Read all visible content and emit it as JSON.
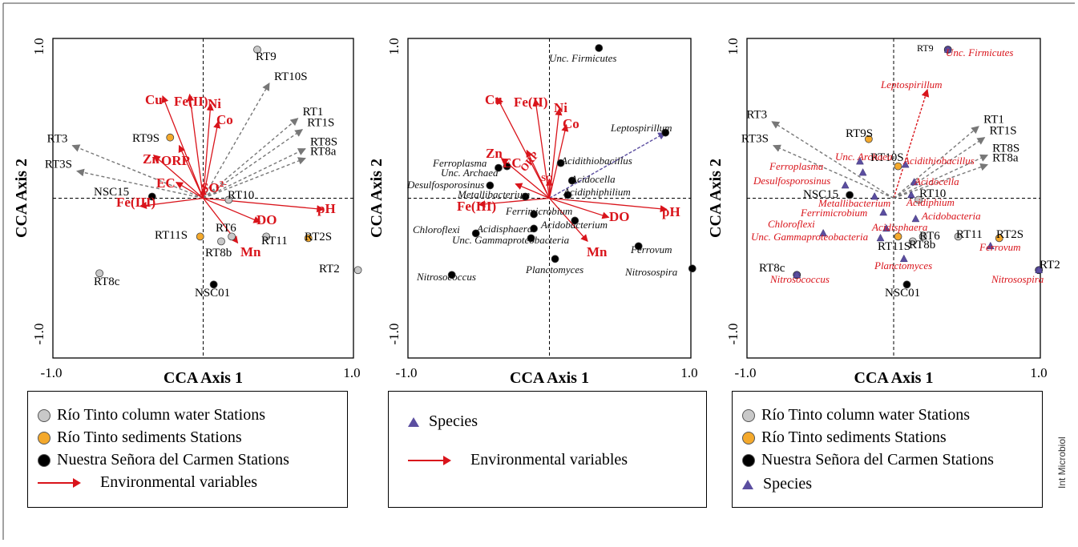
{
  "credit": "Int Microbiol",
  "colors": {
    "water": "#c8c8c8",
    "sediment": "#f4a92c",
    "nsc": "#000000",
    "species": "#5b4ea0",
    "env": "#d9141b",
    "arrow_gray": "#777777"
  },
  "chart_data": [
    {
      "type": "scatter",
      "panel": "sites-and-environment",
      "xlabel": "CCA Axis 1",
      "ylabel": "CCA Axis 2",
      "xlim": [
        -1.0,
        1.0
      ],
      "ylim": [
        -1.0,
        1.0
      ],
      "tick_labels": {
        "xmin": "-1.0",
        "xmax": "1.0",
        "ymin": "-1.0",
        "ymax": "1.0"
      },
      "env_vectors": [
        {
          "name": "Cu",
          "x": -0.27,
          "y": 0.64
        },
        {
          "name": "Fe(II)",
          "x": -0.09,
          "y": 0.65
        },
        {
          "name": "Ni",
          "x": 0.05,
          "y": 0.59
        },
        {
          "name": "Co",
          "x": 0.1,
          "y": 0.48
        },
        {
          "name": "Zn",
          "x": -0.33,
          "y": 0.27
        },
        {
          "name": "ORP",
          "x": -0.16,
          "y": 0.33
        },
        {
          "name": "EC",
          "x": -0.18,
          "y": 0.1
        },
        {
          "name": "SO",
          "superscript": "2-",
          "x": 0.0,
          "y": 0.06
        },
        {
          "name": "Fe(III)",
          "x": -0.42,
          "y": -0.05
        },
        {
          "name": "DO",
          "x": 0.38,
          "y": -0.15
        },
        {
          "name": "pH",
          "x": 0.8,
          "y": -0.07
        },
        {
          "name": "Mn",
          "x": 0.23,
          "y": -0.28
        }
      ],
      "species_vectors": [
        {
          "name": "RT10S",
          "x": 0.44,
          "y": 0.72
        },
        {
          "name": "RT1",
          "x": 0.63,
          "y": 0.5
        },
        {
          "name": "RT1S",
          "x": 0.66,
          "y": 0.43
        },
        {
          "name": "RT8S",
          "x": 0.68,
          "y": 0.31
        },
        {
          "name": "RT8a",
          "x": 0.68,
          "y": 0.25
        },
        {
          "name": "RT3",
          "x": -0.87,
          "y": 0.33
        },
        {
          "name": "RT3S",
          "x": -0.84,
          "y": 0.17
        }
      ],
      "points": [
        {
          "label": "RT9",
          "x": 0.36,
          "y": 0.93,
          "group": "water"
        },
        {
          "label": "RT9S",
          "x": -0.22,
          "y": 0.38,
          "group": "sediment"
        },
        {
          "label": "NSC15",
          "x": -0.34,
          "y": 0.01,
          "group": "nsc"
        },
        {
          "label": "RT10",
          "x": 0.17,
          "y": -0.01,
          "group": "water"
        },
        {
          "label": "RT11S",
          "x": -0.02,
          "y": -0.24,
          "group": "sediment"
        },
        {
          "label": "RT6",
          "x": 0.19,
          "y": -0.24,
          "group": "water"
        },
        {
          "label": "RT8b",
          "x": 0.12,
          "y": -0.27,
          "group": "water"
        },
        {
          "label": "RT11",
          "x": 0.42,
          "y": -0.24,
          "group": "water"
        },
        {
          "label": "RT2S",
          "x": 0.7,
          "y": -0.25,
          "group": "sediment"
        },
        {
          "label": "RT2",
          "x": 1.03,
          "y": -0.45,
          "group": "water"
        },
        {
          "label": "RT8c",
          "x": -0.69,
          "y": -0.47,
          "group": "water"
        },
        {
          "label": "NSC01",
          "x": 0.07,
          "y": -0.54,
          "group": "nsc"
        }
      ]
    },
    {
      "type": "scatter",
      "panel": "species-and-environment",
      "xlabel": "CCA Axis 1",
      "ylabel": "CCA Axis 2",
      "xlim": [
        -1.0,
        1.0
      ],
      "ylim": [
        -1.0,
        1.0
      ],
      "tick_labels": {
        "xmin": "-1.0",
        "xmax": "1.0",
        "ymin": "-1.0",
        "ymax": "1.0"
      },
      "env_vectors": [
        {
          "name": "Cu",
          "x": -0.37,
          "y": 0.63
        },
        {
          "name": "Fe(II)",
          "x": -0.1,
          "y": 0.62
        },
        {
          "name": "Ni",
          "x": 0.07,
          "y": 0.56
        },
        {
          "name": "Co",
          "x": 0.12,
          "y": 0.46
        },
        {
          "name": "Zn",
          "x": -0.34,
          "y": 0.25
        },
        {
          "name": "ORP",
          "x": -0.16,
          "y": 0.3
        },
        {
          "name": "EC",
          "x": -0.24,
          "y": 0.09
        },
        {
          "name": "SO",
          "x": 0.0,
          "y": 0.12
        },
        {
          "name": "Fe(III)",
          "x": -0.5,
          "y": -0.04
        },
        {
          "name": "DO",
          "x": 0.42,
          "y": -0.12
        },
        {
          "name": "pH",
          "x": 0.83,
          "y": -0.07
        },
        {
          "name": "Mn",
          "x": 0.27,
          "y": -0.27
        }
      ],
      "species_vectors": [
        {
          "name": "Leptospirillum",
          "x": 0.82,
          "y": 0.41
        }
      ],
      "points": [
        {
          "label": "Unc. Firmicutes",
          "x": 0.35,
          "y": 0.94
        },
        {
          "label": "Leptospirillum",
          "x": 0.82,
          "y": 0.41
        },
        {
          "label": "Acidithiobacillus",
          "x": 0.08,
          "y": 0.22
        },
        {
          "label": "Acidocella",
          "x": 0.16,
          "y": 0.11
        },
        {
          "label": "Acidiphiphilium",
          "x": 0.13,
          "y": 0.02
        },
        {
          "label": "Ferroplasma",
          "x": -0.3,
          "y": 0.2
        },
        {
          "label": "Unc. Archaea",
          "x": -0.36,
          "y": 0.19
        },
        {
          "label": "Desulfosporosinus",
          "x": -0.42,
          "y": 0.08
        },
        {
          "label": "Metallibacterium",
          "x": -0.17,
          "y": 0.01
        },
        {
          "label": "Ferrimicrobium",
          "x": -0.11,
          "y": -0.1
        },
        {
          "label": "Acidobacterium",
          "x": 0.18,
          "y": -0.14
        },
        {
          "label": "Chloroflexi",
          "x": -0.52,
          "y": -0.22
        },
        {
          "label": "Acidisphaera",
          "x": -0.11,
          "y": -0.19
        },
        {
          "label": "Unc. Gammaproteobacteria",
          "x": -0.13,
          "y": -0.25
        },
        {
          "label": "Planctomyces",
          "x": 0.04,
          "y": -0.38
        },
        {
          "label": "Ferrovum",
          "x": 0.63,
          "y": -0.3
        },
        {
          "label": "Nitrosococcus",
          "x": -0.69,
          "y": -0.48
        },
        {
          "label": "Nitrosospira",
          "x": 1.01,
          "y": -0.44
        }
      ]
    },
    {
      "type": "scatter",
      "panel": "sites-and-species",
      "xlabel": "CCA Axis 1",
      "ylabel": "CCA Axis 2",
      "xlim": [
        -1.0,
        1.0
      ],
      "ylim": [
        -1.0,
        1.0
      ],
      "tick_labels": {
        "xmin": "-1.0",
        "xmax": "1.0",
        "ymin": "-1.0",
        "ymax": "1.0"
      },
      "species_vectors": [
        {
          "name": "Leptospirillum",
          "x": 0.23,
          "y": 0.68,
          "dashed_red": true
        },
        {
          "name": "RT1",
          "x": 0.58,
          "y": 0.45
        },
        {
          "name": "RT1S",
          "x": 0.62,
          "y": 0.38
        },
        {
          "name": "RT8S",
          "x": 0.64,
          "y": 0.27
        },
        {
          "name": "RT8a",
          "x": 0.64,
          "y": 0.21
        },
        {
          "name": "RT3",
          "x": -0.83,
          "y": 0.48
        },
        {
          "name": "RT3S",
          "x": -0.82,
          "y": 0.33
        }
      ],
      "points": [
        {
          "label": "RT9",
          "x": 0.37,
          "y": 0.93,
          "group": "species-site"
        },
        {
          "label": "Unc. Firmicutes",
          "x": 0.37,
          "y": 0.93,
          "group": "species"
        },
        {
          "label": "RT9S",
          "x": -0.17,
          "y": 0.37,
          "group": "sediment"
        },
        {
          "label": "RT10S",
          "x": 0.03,
          "y": 0.2,
          "group": "sediment"
        },
        {
          "label": "NSC15",
          "x": -0.3,
          "y": 0.02,
          "group": "nsc"
        },
        {
          "label": "RT10",
          "x": 0.17,
          "y": -0.01,
          "group": "water"
        },
        {
          "label": "Unc. Archaea",
          "x": -0.23,
          "y": 0.23,
          "group": "species"
        },
        {
          "label": "Ferroplasma",
          "x": -0.21,
          "y": 0.16,
          "group": "species"
        },
        {
          "label": "Desulfosporosinus",
          "x": -0.33,
          "y": 0.08,
          "group": "species"
        },
        {
          "label": "Acidithiobacillus",
          "x": 0.08,
          "y": 0.21,
          "group": "species"
        },
        {
          "label": "Acidocella",
          "x": 0.14,
          "y": 0.1,
          "group": "species"
        },
        {
          "label": "Acidiphium",
          "x": 0.12,
          "y": 0.02,
          "group": "species"
        },
        {
          "label": "Metallibacterium",
          "x": -0.13,
          "y": 0.01,
          "group": "species"
        },
        {
          "label": "Ferrimicrobium",
          "x": -0.07,
          "y": -0.09,
          "group": "species"
        },
        {
          "label": "Acidobacteria",
          "x": 0.15,
          "y": -0.13,
          "group": "species"
        },
        {
          "label": "Chloroflexi",
          "x": -0.48,
          "y": -0.22,
          "group": "species"
        },
        {
          "label": "Acidisphaera",
          "x": -0.05,
          "y": -0.19,
          "group": "species"
        },
        {
          "label": "Unc. Gammaproteobacteria",
          "x": -0.09,
          "y": -0.25,
          "group": "species"
        },
        {
          "label": "RT11S",
          "x": 0.03,
          "y": -0.24,
          "group": "sediment"
        },
        {
          "label": "RT6",
          "x": 0.2,
          "y": -0.24,
          "group": "water"
        },
        {
          "label": "RT8b",
          "x": 0.13,
          "y": -0.27,
          "group": "water"
        },
        {
          "label": "RT11",
          "x": 0.44,
          "y": -0.24,
          "group": "water"
        },
        {
          "label": "RT2S",
          "x": 0.72,
          "y": -0.25,
          "group": "sediment"
        },
        {
          "label": "Ferrovum",
          "x": 0.66,
          "y": -0.3,
          "group": "species"
        },
        {
          "label": "Planctomyces",
          "x": 0.07,
          "y": -0.38,
          "group": "species"
        },
        {
          "label": "RT8c",
          "x": -0.66,
          "y": -0.48,
          "group": "species-site"
        },
        {
          "label": "Nitrosococcus",
          "x": -0.66,
          "y": -0.48,
          "group": "species"
        },
        {
          "label": "NSC01",
          "x": 0.09,
          "y": -0.54,
          "group": "nsc"
        },
        {
          "label": "RT2",
          "x": 0.99,
          "y": -0.45,
          "group": "species-site"
        },
        {
          "label": "Nitrosospira",
          "x": 0.99,
          "y": -0.45,
          "group": "species"
        }
      ]
    }
  ],
  "legends": {
    "left": [
      {
        "kind": "dot",
        "color": "#c8c8c8",
        "text": "Río Tinto column water Stations"
      },
      {
        "kind": "dot",
        "color": "#f4a92c",
        "text": "Río Tinto sediments Stations"
      },
      {
        "kind": "dot",
        "color": "#000000",
        "text": "Nuestra Señora del Carmen Stations"
      },
      {
        "kind": "arrow",
        "text": "Environmental variables"
      }
    ],
    "middle": [
      {
        "kind": "tri",
        "text": "Species"
      },
      {
        "kind": "arrow",
        "text": "Environmental variables"
      }
    ],
    "right": [
      {
        "kind": "dot",
        "color": "#c8c8c8",
        "text": "Río Tinto column water Stations"
      },
      {
        "kind": "dot",
        "color": "#f4a92c",
        "text": "Río Tinto sediments Stations"
      },
      {
        "kind": "dot",
        "color": "#000000",
        "text": "Nuestra Señora del Carmen Stations"
      },
      {
        "kind": "tri",
        "text": "Species"
      }
    ]
  }
}
